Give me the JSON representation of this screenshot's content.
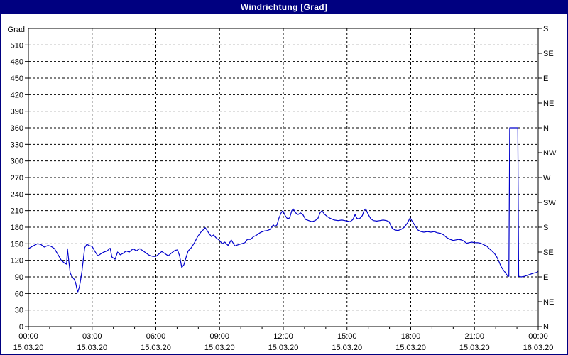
{
  "window": {
    "title": "Windrichtung [Grad]"
  },
  "colors": {
    "titlebar_bg": "#000080",
    "titlebar_text": "#ffffff",
    "border": "#000080",
    "background": "#ffffff",
    "axis": "#000000",
    "grid": "#000000",
    "line": "#0000cc"
  },
  "chart_data": {
    "type": "line",
    "title": "Windrichtung [Grad]",
    "ylabel_left": "Grad",
    "ylim": [
      0,
      540
    ],
    "xlim_hours": [
      0,
      24
    ],
    "grid": "dashed",
    "y_left_ticks": [
      0,
      30,
      60,
      90,
      120,
      150,
      180,
      210,
      240,
      270,
      300,
      330,
      360,
      390,
      420,
      450,
      480,
      510
    ],
    "y_right_ticks": [
      {
        "deg": 0,
        "label": "N"
      },
      {
        "deg": 45,
        "label": "NE"
      },
      {
        "deg": 90,
        "label": "E"
      },
      {
        "deg": 135,
        "label": "SE"
      },
      {
        "deg": 180,
        "label": "S"
      },
      {
        "deg": 225,
        "label": "SW"
      },
      {
        "deg": 270,
        "label": "W"
      },
      {
        "deg": 315,
        "label": "NW"
      },
      {
        "deg": 360,
        "label": "N"
      },
      {
        "deg": 405,
        "label": "NE"
      },
      {
        "deg": 450,
        "label": "E"
      },
      {
        "deg": 495,
        "label": "SE"
      },
      {
        "deg": 540,
        "label": "S"
      }
    ],
    "x_major_ticks": [
      {
        "hour": 0,
        "time": "00:00",
        "date": "15.03.20"
      },
      {
        "hour": 3,
        "time": "03:00",
        "date": "15.03.20"
      },
      {
        "hour": 6,
        "time": "06:00",
        "date": "15.03.20"
      },
      {
        "hour": 9,
        "time": "09:00",
        "date": "15.03.20"
      },
      {
        "hour": 12,
        "time": "12:00",
        "date": "15.03.20"
      },
      {
        "hour": 15,
        "time": "15:00",
        "date": "15.03.20"
      },
      {
        "hour": 18,
        "time": "18:00",
        "date": "15.03.20"
      },
      {
        "hour": 21,
        "time": "21:00",
        "date": "15.03.20"
      },
      {
        "hour": 24,
        "time": "00:00",
        "date": "16.03.20"
      }
    ],
    "x_minor_step_hours": 1,
    "series": [
      {
        "name": "Windrichtung",
        "color": "#0000cc",
        "points": [
          [
            0.0,
            141
          ],
          [
            0.17,
            145
          ],
          [
            0.42,
            150
          ],
          [
            0.58,
            149
          ],
          [
            0.75,
            144
          ],
          [
            0.92,
            147
          ],
          [
            1.08,
            145
          ],
          [
            1.23,
            141
          ],
          [
            1.4,
            130
          ],
          [
            1.55,
            120
          ],
          [
            1.7,
            115
          ],
          [
            1.8,
            113
          ],
          [
            1.84,
            141
          ],
          [
            1.9,
            120
          ],
          [
            1.97,
            97
          ],
          [
            2.06,
            90
          ],
          [
            2.15,
            86
          ],
          [
            2.22,
            80
          ],
          [
            2.28,
            69
          ],
          [
            2.33,
            63
          ],
          [
            2.4,
            72
          ],
          [
            2.46,
            85
          ],
          [
            2.52,
            100
          ],
          [
            2.58,
            120
          ],
          [
            2.65,
            143
          ],
          [
            2.75,
            149
          ],
          [
            2.85,
            147
          ],
          [
            3.0,
            145
          ],
          [
            3.12,
            137
          ],
          [
            3.27,
            128
          ],
          [
            3.42,
            132
          ],
          [
            3.55,
            135
          ],
          [
            3.7,
            137
          ],
          [
            3.85,
            142
          ],
          [
            3.93,
            126
          ],
          [
            4.08,
            122
          ],
          [
            4.2,
            135
          ],
          [
            4.33,
            130
          ],
          [
            4.47,
            133
          ],
          [
            4.6,
            137
          ],
          [
            4.75,
            135
          ],
          [
            4.93,
            141
          ],
          [
            5.08,
            137
          ],
          [
            5.24,
            141
          ],
          [
            5.4,
            137
          ],
          [
            5.55,
            133
          ],
          [
            5.7,
            129
          ],
          [
            5.86,
            127
          ],
          [
            6.0,
            127
          ],
          [
            6.13,
            131
          ],
          [
            6.28,
            136
          ],
          [
            6.43,
            132
          ],
          [
            6.58,
            128
          ],
          [
            6.73,
            133
          ],
          [
            6.9,
            138
          ],
          [
            7.02,
            139
          ],
          [
            7.12,
            128
          ],
          [
            7.22,
            107
          ],
          [
            7.32,
            112
          ],
          [
            7.42,
            125
          ],
          [
            7.52,
            137
          ],
          [
            7.67,
            143
          ],
          [
            7.82,
            152
          ],
          [
            7.97,
            163
          ],
          [
            8.12,
            171
          ],
          [
            8.33,
            179
          ],
          [
            8.5,
            169
          ],
          [
            8.62,
            163
          ],
          [
            8.72,
            166
          ],
          [
            8.83,
            161
          ],
          [
            9.0,
            156
          ],
          [
            9.12,
            150
          ],
          [
            9.25,
            153
          ],
          [
            9.4,
            147
          ],
          [
            9.55,
            157
          ],
          [
            9.72,
            146
          ],
          [
            9.85,
            148
          ],
          [
            10.03,
            150
          ],
          [
            10.19,
            152
          ],
          [
            10.31,
            158
          ],
          [
            10.47,
            158
          ],
          [
            10.6,
            163
          ],
          [
            10.72,
            165
          ],
          [
            10.83,
            168
          ],
          [
            10.95,
            171
          ],
          [
            11.1,
            173
          ],
          [
            11.25,
            174
          ],
          [
            11.38,
            176
          ],
          [
            11.48,
            182
          ],
          [
            11.54,
            184
          ],
          [
            11.6,
            181
          ],
          [
            11.7,
            184
          ],
          [
            11.8,
            197
          ],
          [
            11.9,
            206
          ],
          [
            11.98,
            210
          ],
          [
            12.09,
            201
          ],
          [
            12.2,
            195
          ],
          [
            12.3,
            197
          ],
          [
            12.4,
            210
          ],
          [
            12.47,
            213
          ],
          [
            12.58,
            206
          ],
          [
            12.7,
            203
          ],
          [
            12.81,
            206
          ],
          [
            12.92,
            203
          ],
          [
            13.05,
            194
          ],
          [
            13.2,
            192
          ],
          [
            13.35,
            190
          ],
          [
            13.5,
            192
          ],
          [
            13.63,
            196
          ],
          [
            13.73,
            206
          ],
          [
            13.82,
            210
          ],
          [
            13.93,
            204
          ],
          [
            14.08,
            199
          ],
          [
            14.22,
            196
          ],
          [
            14.4,
            193
          ],
          [
            14.58,
            192
          ],
          [
            14.75,
            193
          ],
          [
            14.9,
            192
          ],
          [
            15.0,
            191
          ],
          [
            15.15,
            190
          ],
          [
            15.28,
            194
          ],
          [
            15.38,
            203
          ],
          [
            15.47,
            196
          ],
          [
            15.58,
            195
          ],
          [
            15.72,
            201
          ],
          [
            15.8,
            210
          ],
          [
            15.88,
            213
          ],
          [
            16.0,
            203
          ],
          [
            16.12,
            195
          ],
          [
            16.25,
            192
          ],
          [
            16.4,
            191
          ],
          [
            16.55,
            192
          ],
          [
            16.7,
            193
          ],
          [
            16.85,
            192
          ],
          [
            16.98,
            190
          ],
          [
            17.06,
            183
          ],
          [
            17.13,
            178
          ],
          [
            17.25,
            175
          ],
          [
            17.4,
            174
          ],
          [
            17.55,
            176
          ],
          [
            17.7,
            180
          ],
          [
            17.85,
            188
          ],
          [
            17.97,
            197
          ],
          [
            18.08,
            190
          ],
          [
            18.2,
            183
          ],
          [
            18.33,
            175
          ],
          [
            18.48,
            172
          ],
          [
            18.62,
            171
          ],
          [
            18.78,
            172
          ],
          [
            18.95,
            171
          ],
          [
            19.1,
            172
          ],
          [
            19.25,
            170
          ],
          [
            19.4,
            169
          ],
          [
            19.55,
            166
          ],
          [
            19.7,
            161
          ],
          [
            19.85,
            158
          ],
          [
            20.0,
            156
          ],
          [
            20.12,
            157
          ],
          [
            20.25,
            158
          ],
          [
            20.38,
            157
          ],
          [
            20.5,
            155
          ],
          [
            20.62,
            151
          ],
          [
            20.75,
            152
          ],
          [
            20.88,
            153
          ],
          [
            21.0,
            152
          ],
          [
            21.15,
            152
          ],
          [
            21.3,
            151
          ],
          [
            21.45,
            148
          ],
          [
            21.57,
            146
          ],
          [
            21.7,
            141
          ],
          [
            21.82,
            137
          ],
          [
            21.95,
            132
          ],
          [
            22.05,
            126
          ],
          [
            22.15,
            118
          ],
          [
            22.25,
            109
          ],
          [
            22.35,
            103
          ],
          [
            22.45,
            98
          ],
          [
            22.52,
            94
          ],
          [
            22.58,
            91
          ],
          [
            22.62,
            91
          ],
          [
            22.66,
            360
          ],
          [
            23.04,
            360
          ],
          [
            23.08,
            91
          ],
          [
            23.2,
            90
          ],
          [
            23.35,
            91
          ],
          [
            23.5,
            93
          ],
          [
            23.65,
            95
          ],
          [
            23.8,
            97
          ],
          [
            23.92,
            98
          ],
          [
            24.0,
            100
          ]
        ]
      }
    ]
  }
}
